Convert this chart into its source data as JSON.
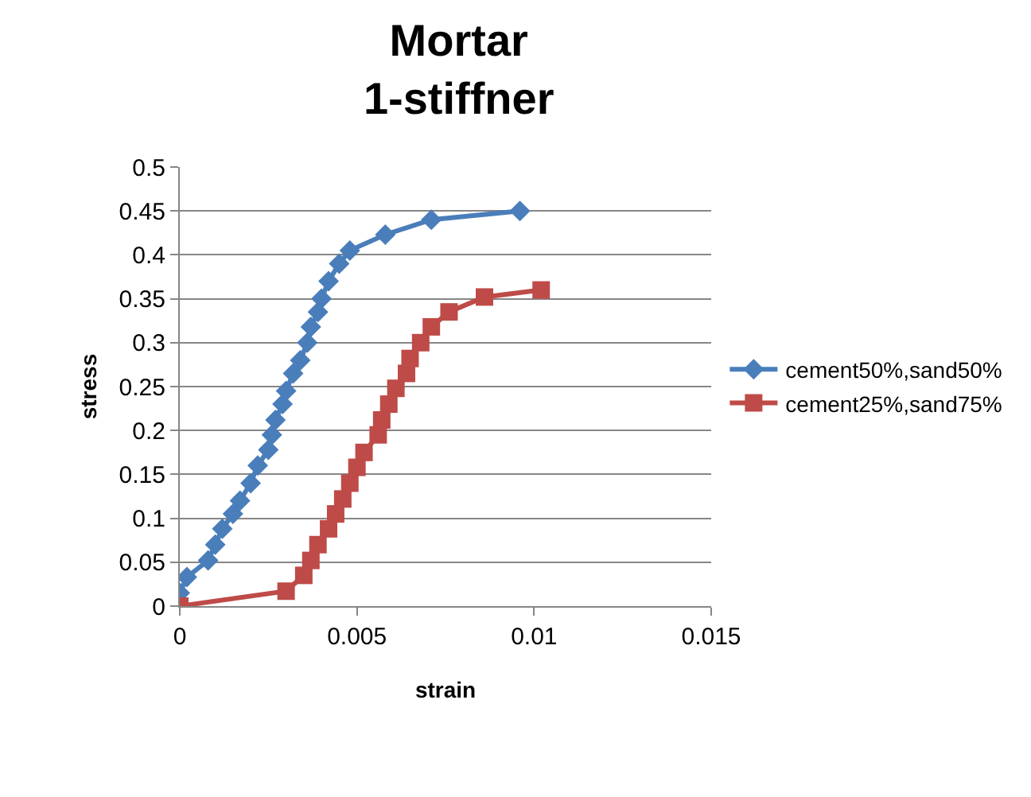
{
  "chart_data": {
    "type": "line",
    "title": "Mortar\n1-stiffner",
    "xlabel": "strain",
    "ylabel": "stress",
    "xlim": [
      0,
      0.015
    ],
    "xticks": [
      0,
      0.005,
      0.01,
      0.015
    ],
    "ylim": [
      0,
      0.5
    ],
    "yticks": [
      0,
      0.05,
      0.1,
      0.15,
      0.2,
      0.25,
      0.3,
      0.35,
      0.4,
      0.45,
      0.5
    ],
    "grid": "y",
    "legend": "right",
    "series": [
      {
        "name": "cement50%,sand50%",
        "color": "#4a7ebb",
        "marker": "diamond",
        "x": [
          0,
          0.0002,
          0.0008,
          0.001,
          0.0012,
          0.0015,
          0.0017,
          0.002,
          0.0022,
          0.0025,
          0.0026,
          0.0027,
          0.0029,
          0.003,
          0.0032,
          0.0034,
          0.0036,
          0.0037,
          0.0039,
          0.004,
          0.0042,
          0.0045,
          0.0048,
          0.0058,
          0.0071,
          0.0096
        ],
        "values": [
          0.015,
          0.033,
          0.052,
          0.07,
          0.088,
          0.105,
          0.12,
          0.14,
          0.16,
          0.178,
          0.195,
          0.212,
          0.23,
          0.245,
          0.265,
          0.28,
          0.3,
          0.318,
          0.335,
          0.35,
          0.37,
          0.39,
          0.405,
          0.423,
          0.44,
          0.45
        ]
      },
      {
        "name": "cement25%,sand75%",
        "color": "#be4b48",
        "marker": "square",
        "x": [
          0,
          0.003,
          0.0035,
          0.0037,
          0.0039,
          0.0042,
          0.0044,
          0.0046,
          0.0048,
          0.005,
          0.0052,
          0.0056,
          0.0057,
          0.0059,
          0.0061,
          0.0064,
          0.0065,
          0.0068,
          0.0071,
          0.0076,
          0.0086,
          0.0102
        ],
        "values": [
          0,
          0.017,
          0.035,
          0.052,
          0.07,
          0.088,
          0.105,
          0.122,
          0.14,
          0.158,
          0.175,
          0.195,
          0.212,
          0.23,
          0.248,
          0.265,
          0.282,
          0.3,
          0.318,
          0.335,
          0.352,
          0.36
        ]
      }
    ]
  }
}
